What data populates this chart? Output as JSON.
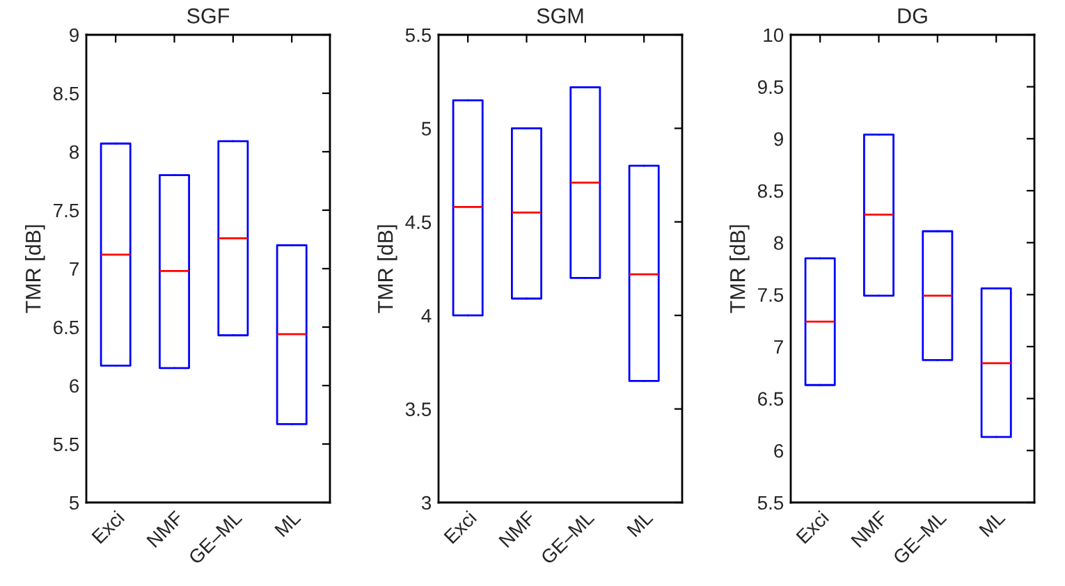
{
  "chart_data": [
    {
      "type": "box",
      "title": "SGF",
      "ylabel": "TMR [dB]",
      "categories": [
        "Exci",
        "NMF",
        "GE–ML",
        "ML"
      ],
      "ylim": [
        5,
        9
      ],
      "yticks": [
        5,
        5.5,
        6,
        6.5,
        7,
        7.5,
        8,
        8.5,
        9
      ],
      "grid": false,
      "series": [
        {
          "color": "#0000ff",
          "boxes": [
            {
              "low": 6.17,
              "q1": 6.17,
              "median": 7.12,
              "q3": 8.07,
              "high": 8.07
            },
            {
              "low": 6.15,
              "q1": 6.15,
              "median": 6.98,
              "q3": 7.8,
              "high": 7.8
            },
            {
              "low": 6.43,
              "q1": 6.43,
              "median": 7.26,
              "q3": 8.09,
              "high": 8.09
            },
            {
              "low": 5.67,
              "q1": 5.67,
              "median": 6.44,
              "q3": 7.2,
              "high": 7.2
            }
          ]
        }
      ]
    },
    {
      "type": "box",
      "title": "SGM",
      "ylabel": "TMR [dB]",
      "categories": [
        "Exci",
        "NMF",
        "GE–ML",
        "ML"
      ],
      "ylim": [
        3,
        5.5
      ],
      "yticks": [
        3,
        3.5,
        4,
        4.5,
        5,
        5.5
      ],
      "grid": false,
      "series": [
        {
          "color": "#0000ff",
          "boxes": [
            {
              "low": 4.0,
              "q1": 4.0,
              "median": 4.58,
              "q3": 5.15,
              "high": 5.15
            },
            {
              "low": 4.09,
              "q1": 4.09,
              "median": 4.55,
              "q3": 5.0,
              "high": 5.0
            },
            {
              "low": 4.2,
              "q1": 4.2,
              "median": 4.71,
              "q3": 5.22,
              "high": 5.22
            },
            {
              "low": 3.65,
              "q1": 3.65,
              "median": 4.22,
              "q3": 4.8,
              "high": 4.8
            }
          ]
        }
      ]
    },
    {
      "type": "box",
      "title": "DG",
      "ylabel": "TMR [dB]",
      "categories": [
        "Exci",
        "NMF",
        "GE–ML",
        "ML"
      ],
      "ylim": [
        5.5,
        10
      ],
      "yticks": [
        5.5,
        6,
        6.5,
        7,
        7.5,
        8,
        8.5,
        9,
        9.5,
        10
      ],
      "grid": false,
      "series": [
        {
          "color": "#0000ff",
          "boxes": [
            {
              "low": 6.63,
              "q1": 6.63,
              "median": 7.24,
              "q3": 7.85,
              "high": 7.85
            },
            {
              "low": 7.49,
              "q1": 7.49,
              "median": 8.27,
              "q3": 9.04,
              "high": 9.04
            },
            {
              "low": 6.87,
              "q1": 6.87,
              "median": 7.49,
              "q3": 8.11,
              "high": 8.11
            },
            {
              "low": 6.13,
              "q1": 6.13,
              "median": 6.84,
              "q3": 7.56,
              "high": 7.56
            }
          ]
        }
      ]
    }
  ]
}
